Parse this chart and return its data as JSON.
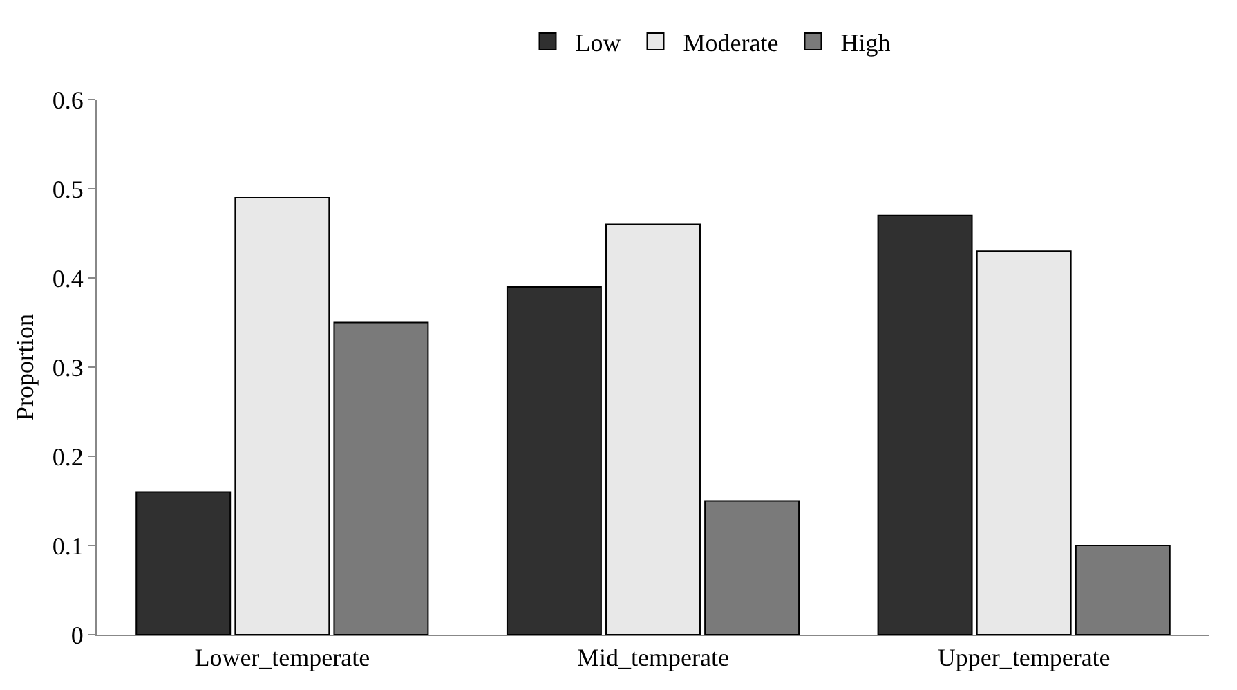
{
  "chart_data": {
    "type": "bar",
    "ylabel": "Proportion",
    "categories": [
      "Lower_temperate",
      "Mid_temperate",
      "Upper_temperate"
    ],
    "series": [
      {
        "name": "Low",
        "color": "#303030",
        "values": [
          0.16,
          0.39,
          0.47
        ]
      },
      {
        "name": "Moderate",
        "color": "#e8e8e8",
        "values": [
          0.49,
          0.46,
          0.43
        ]
      },
      {
        "name": "High",
        "color": "#7a7a7a",
        "values": [
          0.35,
          0.15,
          0.1
        ]
      }
    ],
    "ylim": [
      0,
      0.6
    ],
    "yticks": [
      0,
      0.1,
      0.2,
      0.3,
      0.4,
      0.5,
      0.6
    ],
    "grid": false,
    "legend": "top"
  }
}
